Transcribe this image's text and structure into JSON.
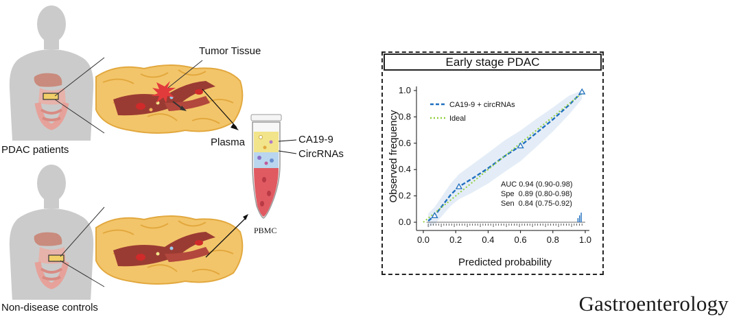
{
  "labels": {
    "pdac_patients": "PDAC patients",
    "controls": "Non-disease controls",
    "tumor_tissue": "Tumor Tissue",
    "plasma": "Plasma",
    "ca199": "CA19-9",
    "circrnas": "CircRNAs",
    "pbmc": "PBMC"
  },
  "journal": "Gastroenterology",
  "colors": {
    "body": "#cbcbcb",
    "fat": "#f3c56a",
    "vessel": "#9a3b33",
    "tube_blood": "#e05a62",
    "tube_plasma": "#f2e48a",
    "tube_buffy": "#b9d6ee",
    "model_line": "#1f6fbf",
    "ideal_line": "#8fcf3a",
    "ci_band": "#dde8f5"
  },
  "chart_data": {
    "type": "line",
    "title": "Early stage PDAC",
    "xlabel": "Predicted probability",
    "ylabel": "Observed frequency",
    "xlim": [
      0,
      1
    ],
    "ylim": [
      0,
      1
    ],
    "xticks": [
      "0.0",
      "0.2",
      "0.4",
      "0.6",
      "0.8",
      "1.0"
    ],
    "yticks": [
      "0.0",
      "0.2",
      "0.4",
      "0.6",
      "0.8",
      "1.0"
    ],
    "legend_position": "top-left",
    "series": [
      {
        "name": "CA19-9 + circRNAs",
        "style": "dashed",
        "color": "#1f6fbf",
        "x": [
          0.03,
          0.07,
          0.12,
          0.17,
          0.22,
          0.3,
          0.4,
          0.5,
          0.6,
          0.7,
          0.8,
          0.9,
          0.98
        ],
        "y": [
          0.01,
          0.05,
          0.13,
          0.21,
          0.27,
          0.33,
          0.41,
          0.5,
          0.58,
          0.68,
          0.78,
          0.89,
          0.99
        ]
      },
      {
        "name": "Ideal",
        "style": "dotted",
        "color": "#8fcf3a",
        "x": [
          0,
          1
        ],
        "y": [
          0,
          1
        ]
      }
    ],
    "markers": [
      {
        "x": 0.07,
        "y": 0.05
      },
      {
        "x": 0.22,
        "y": 0.27
      },
      {
        "x": 0.6,
        "y": 0.58
      },
      {
        "x": 0.98,
        "y": 0.99
      }
    ],
    "annotations": [
      "AUC 0.94 (0.90-0.98)",
      "Spe  0.89 (0.80-0.98)",
      "Sen  0.84 (0.75-0.92)"
    ]
  }
}
